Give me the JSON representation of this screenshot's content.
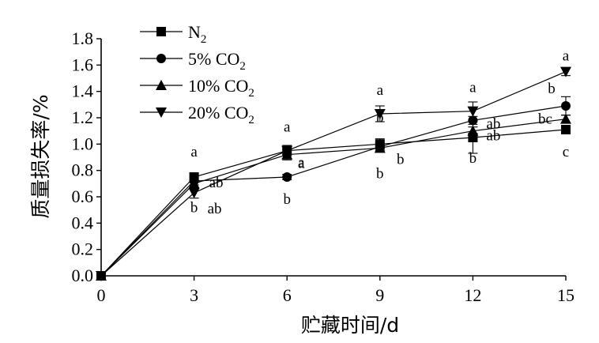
{
  "chart_data": {
    "type": "line",
    "xlabel": "贮藏时间/d",
    "ylabel": "质量损失率/%",
    "xlim": [
      0,
      15
    ],
    "ylim": [
      0,
      1.8
    ],
    "xticks": [
      0,
      3,
      6,
      9,
      12,
      15
    ],
    "yticks": [
      "0.0",
      "0.2",
      "0.4",
      "0.6",
      "0.8",
      "1.0",
      "1.2",
      "1.4",
      "1.6",
      "1.8"
    ],
    "legend_position": "top-left",
    "x": [
      0,
      3,
      6,
      9,
      12,
      15
    ],
    "series": [
      {
        "name": "N",
        "name_sub": "2",
        "marker": "square",
        "values": [
          0.0,
          0.75,
          0.95,
          1.0,
          1.05,
          1.11
        ],
        "errors": [
          0.0,
          0.03,
          0.03,
          0.04,
          0.12,
          0.03
        ],
        "letters": [
          "",
          "a",
          "a",
          "b",
          "b",
          "c"
        ]
      },
      {
        "name": "5% CO",
        "name_sub": "2",
        "marker": "circle",
        "values": [
          0.0,
          0.72,
          0.75,
          0.98,
          1.18,
          1.29
        ],
        "errors": [
          0.0,
          0.03,
          0.02,
          0.03,
          0.03,
          0.07
        ],
        "letters": [
          "",
          "ab",
          "b",
          "b",
          "ab",
          "b"
        ]
      },
      {
        "name": "10% CO",
        "name_sub": "2",
        "marker": "triangle-up",
        "values": [
          0.0,
          0.7,
          0.92,
          0.97,
          1.1,
          1.19
        ],
        "errors": [
          0.0,
          0.03,
          0.04,
          0.03,
          0.03,
          0.03
        ],
        "letters": [
          "",
          "b",
          "a",
          "b",
          "ab",
          "bc"
        ]
      },
      {
        "name": "20% CO",
        "name_sub": "2",
        "marker": "triangle-down",
        "values": [
          0.0,
          0.63,
          0.95,
          1.23,
          1.25,
          1.55
        ],
        "errors": [
          0.0,
          0.04,
          0.04,
          0.06,
          0.07,
          0.03
        ],
        "letters": [
          "",
          "ab",
          "a",
          "a",
          "a",
          "a"
        ]
      }
    ]
  }
}
